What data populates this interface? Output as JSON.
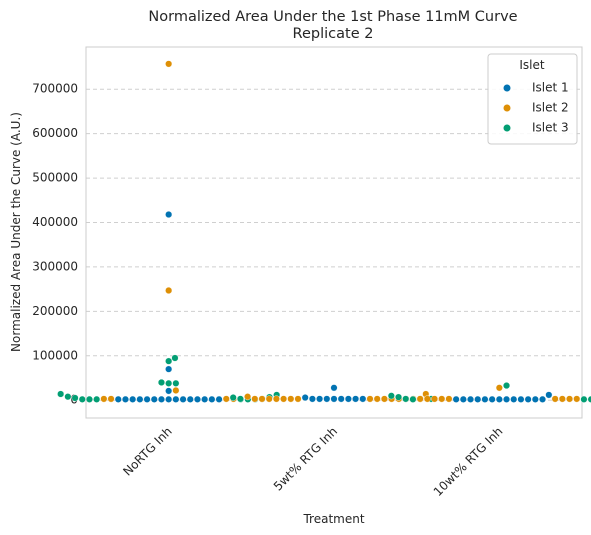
{
  "chart_data": {
    "type": "scatter",
    "style": "swarm",
    "title": [
      "Normalized Area Under the 1st Phase 11mM Curve",
      "Replicate 2"
    ],
    "xlabel": "Treatment",
    "ylabel": "Normalized Area Under the Curve (A.U.)",
    "categories": [
      "NoRTG Inh",
      "5wt% RTG Inh",
      "10wt% RTG Inh"
    ],
    "ylim": [
      -40000,
      795000
    ],
    "yticks": [
      0,
      100000,
      200000,
      300000,
      400000,
      500000,
      600000,
      700000
    ],
    "grid": "y-dashed",
    "legend": {
      "title": "Islet",
      "placement": "top-right"
    },
    "series": [
      {
        "name": "Islet 1",
        "color": "#0173b2",
        "points": [
          [
            0,
            418000
          ],
          [
            0,
            70000
          ],
          [
            0,
            21000
          ],
          [
            0,
            2000
          ],
          [
            0,
            2000
          ],
          [
            0,
            2000
          ],
          [
            0,
            2000
          ],
          [
            0,
            2000
          ],
          [
            0,
            2000
          ],
          [
            0,
            2000
          ],
          [
            0,
            2000
          ],
          [
            0,
            2000
          ],
          [
            0,
            2000
          ],
          [
            0,
            2000
          ],
          [
            0,
            2000
          ],
          [
            0,
            2000
          ],
          [
            0,
            2000
          ],
          [
            0,
            2000
          ],
          [
            1,
            28000
          ],
          [
            1,
            6000
          ],
          [
            1,
            3000
          ],
          [
            1,
            3000
          ],
          [
            1,
            3000
          ],
          [
            1,
            3000
          ],
          [
            1,
            3000
          ],
          [
            1,
            3000
          ],
          [
            1,
            3000
          ],
          [
            1,
            3000
          ],
          [
            2,
            12000
          ],
          [
            2,
            2000
          ],
          [
            2,
            2000
          ],
          [
            2,
            2000
          ],
          [
            2,
            2000
          ],
          [
            2,
            2000
          ],
          [
            2,
            2000
          ],
          [
            2,
            2000
          ],
          [
            2,
            2000
          ],
          [
            2,
            2000
          ],
          [
            2,
            2000
          ],
          [
            2,
            2000
          ],
          [
            2,
            2000
          ],
          [
            2,
            2000
          ]
        ]
      },
      {
        "name": "Islet 2",
        "color": "#de8f05",
        "points": [
          [
            0,
            757000
          ],
          [
            0,
            247000
          ],
          [
            0,
            22000
          ],
          [
            0,
            3000
          ],
          [
            0,
            3000
          ],
          [
            0,
            3000
          ],
          [
            0,
            3000
          ],
          [
            1,
            14000
          ],
          [
            1,
            8000
          ],
          [
            1,
            3000
          ],
          [
            1,
            3000
          ],
          [
            1,
            3000
          ],
          [
            1,
            3000
          ],
          [
            1,
            3000
          ],
          [
            1,
            3000
          ],
          [
            1,
            3000
          ],
          [
            1,
            3000
          ],
          [
            1,
            3000
          ],
          [
            1,
            3000
          ],
          [
            1,
            3000
          ],
          [
            1,
            3000
          ],
          [
            1,
            3000
          ],
          [
            1,
            3000
          ],
          [
            1,
            3000
          ],
          [
            2,
            28000
          ],
          [
            2,
            3000
          ],
          [
            2,
            3000
          ],
          [
            2,
            3000
          ],
          [
            2,
            3000
          ],
          [
            2,
            3000
          ],
          [
            2,
            3000
          ],
          [
            2,
            3000
          ],
          [
            2,
            3000
          ],
          [
            2,
            3000
          ]
        ]
      },
      {
        "name": "Islet 3",
        "color": "#029e73",
        "points": [
          [
            0,
            95000
          ],
          [
            0,
            88000
          ],
          [
            0,
            40000
          ],
          [
            0,
            38000
          ],
          [
            0,
            38000
          ],
          [
            0,
            14000
          ],
          [
            0,
            12000
          ],
          [
            0,
            8000
          ],
          [
            0,
            7000
          ],
          [
            0,
            5000
          ],
          [
            0,
            3000
          ],
          [
            0,
            2000
          ],
          [
            0,
            2000
          ],
          [
            0,
            2000
          ],
          [
            0,
            2000
          ],
          [
            0,
            2000
          ],
          [
            0,
            2000
          ],
          [
            1,
            6000
          ],
          [
            1,
            3000
          ],
          [
            1,
            3000
          ],
          [
            2,
            33000
          ],
          [
            2,
            15000
          ],
          [
            2,
            10000
          ],
          [
            2,
            8000
          ],
          [
            2,
            7000
          ],
          [
            2,
            5000
          ],
          [
            2,
            3000
          ],
          [
            2,
            2000
          ],
          [
            2,
            2000
          ],
          [
            2,
            2000
          ]
        ]
      }
    ]
  }
}
